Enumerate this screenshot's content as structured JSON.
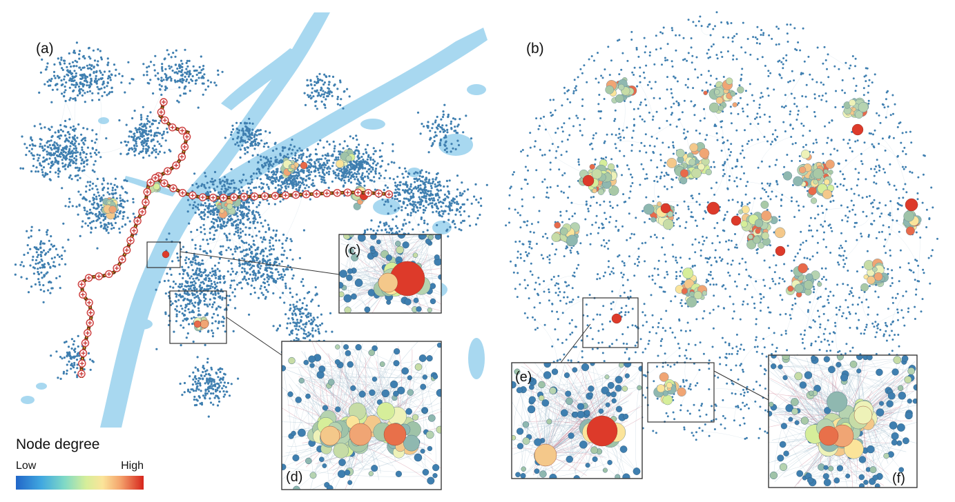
{
  "panels": {
    "a": {
      "label": "(a)"
    },
    "b": {
      "label": "(b)"
    },
    "c": {
      "label": "(c)"
    },
    "d": {
      "label": "(d)"
    },
    "e": {
      "label": "(e)"
    },
    "f": {
      "label": "(f)"
    }
  },
  "legend": {
    "title": "Node degree",
    "low": "Low",
    "high": "High",
    "colors": [
      "#2166c8",
      "#41a8e0",
      "#7fd9c6",
      "#d6ee9a",
      "#fbe49a",
      "#f4a26b",
      "#e8503a",
      "#d6251c"
    ]
  },
  "colors": {
    "river": "#a8d8f0",
    "low_degree_node": "#3f7fb0",
    "mid_node": "#9fc3a8",
    "light_node": "#eef2b8",
    "warm_node": "#f0a574",
    "hub_node": "#dd3a2a",
    "edge": "#9ab7c9",
    "metro_line": "#7a4a1a"
  }
}
